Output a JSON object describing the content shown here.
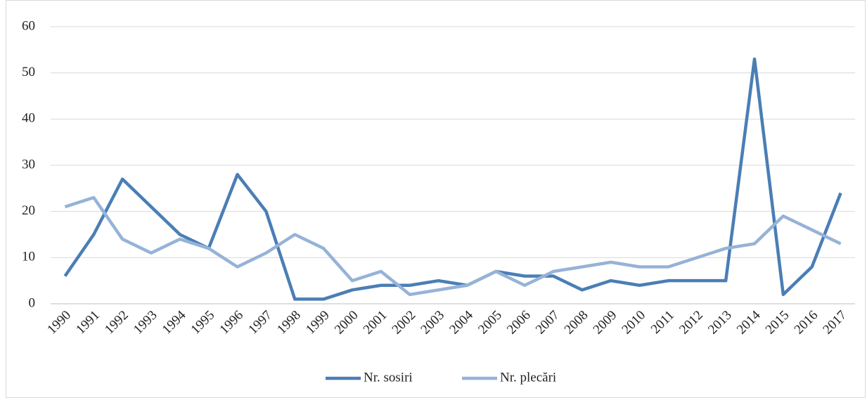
{
  "chart_data": {
    "type": "line",
    "categories": [
      "1990",
      "1991",
      "1992",
      "1993",
      "1994",
      "1995",
      "1996",
      "1997",
      "1998",
      "1999",
      "2000",
      "2001",
      "2002",
      "2003",
      "2004",
      "2005",
      "2006",
      "2007",
      "2008",
      "2009",
      "2010",
      "2011",
      "2012",
      "2013",
      "2014",
      "2015",
      "2016",
      "2017"
    ],
    "series": [
      {
        "name": "Nr. sosiri",
        "color": "#4a7eb5",
        "values": [
          6,
          15,
          27,
          21,
          15,
          12,
          28,
          20,
          1,
          1,
          3,
          4,
          4,
          5,
          4,
          7,
          6,
          6,
          3,
          5,
          4,
          5,
          5,
          5,
          53,
          2,
          8,
          24
        ]
      },
      {
        "name": "Nr. plecări",
        "color": "#95b3d7",
        "values": [
          21,
          23,
          14,
          11,
          14,
          12,
          8,
          11,
          15,
          12,
          5,
          7,
          2,
          3,
          4,
          7,
          4,
          7,
          8,
          9,
          8,
          8,
          10,
          12,
          13,
          19,
          16,
          13
        ]
      }
    ],
    "ylim": [
      0,
      60
    ],
    "yticks": [
      0,
      10,
      20,
      30,
      40,
      50,
      60
    ],
    "grid": true,
    "legend": "bottom"
  }
}
